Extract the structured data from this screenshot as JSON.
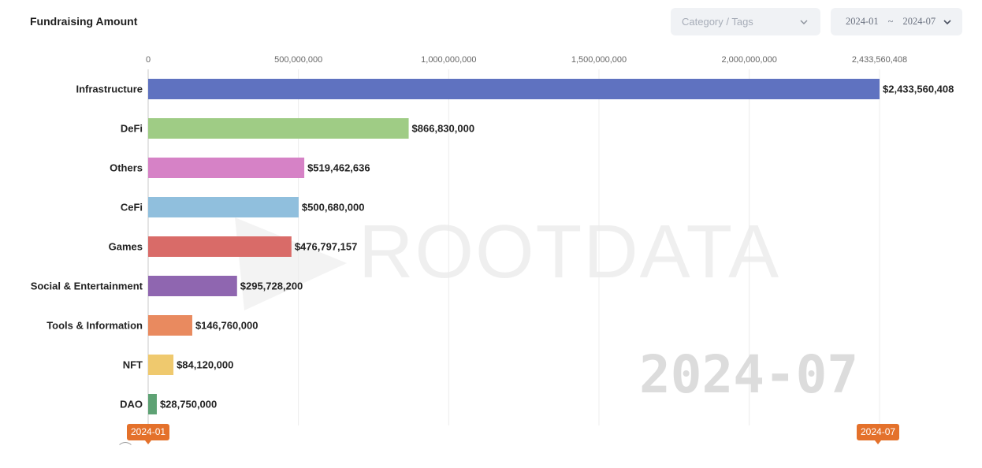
{
  "header": {
    "title": "Fundraising Amount",
    "category_placeholder": "Category / Tags",
    "date_from": "2024-01",
    "date_separator": "~",
    "date_to": "2024-07"
  },
  "watermark": {
    "brand": "ROOTDATA",
    "current_period": "2024-07"
  },
  "timeline": {
    "start_label": "2024-01",
    "end_label": "2024-07"
  },
  "chart_data": {
    "type": "bar",
    "orientation": "horizontal",
    "title": "Fundraising Amount",
    "categories": [
      "Infrastructure",
      "DeFi",
      "Others",
      "CeFi",
      "Games",
      "Social & Entertainment",
      "Tools & Information",
      "NFT",
      "DAO"
    ],
    "values": [
      2433560408,
      866830000,
      519462636,
      500680000,
      476797157,
      295728200,
      146760000,
      84120000,
      28750000
    ],
    "value_labels": [
      "$2,433,560,408",
      "$866,830,000",
      "$519,462,636",
      "$500,680,000",
      "$476,797,157",
      "$295,728,200",
      "$146,760,000",
      "$84,120,000",
      "$28,750,000"
    ],
    "colors": [
      "#5f72c0",
      "#9fcc85",
      "#d682c6",
      "#90bfdd",
      "#d96b68",
      "#8f66b0",
      "#e98a5f",
      "#efc96e",
      "#5ea274"
    ],
    "x_ticks": [
      0,
      500000000,
      1000000000,
      1500000000,
      2000000000,
      2433560408
    ],
    "x_tick_labels": [
      "0",
      "500,000,000",
      "1,000,000,000",
      "1,500,000,000",
      "2,000,000,000",
      "2,433,560,408"
    ],
    "xlim": [
      0,
      2433560408
    ],
    "axis_position": "top",
    "grid": true
  }
}
